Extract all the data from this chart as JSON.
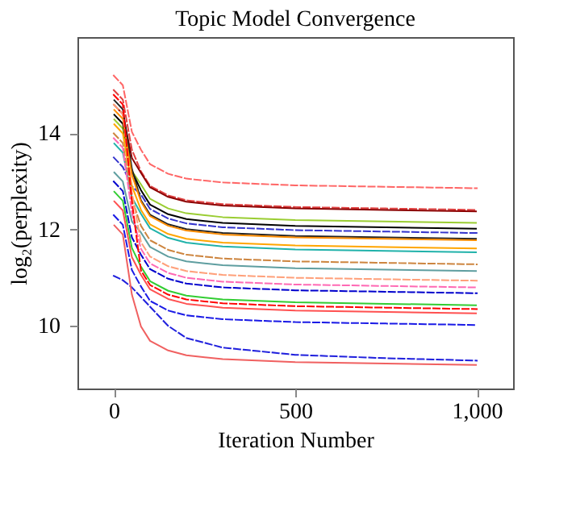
{
  "chart_data": {
    "type": "line",
    "title": "Topic Model Convergence",
    "xlabel": "Iteration Number",
    "ylabel": "log₂(perplexity)",
    "x": [
      0,
      25,
      50,
      75,
      100,
      150,
      200,
      300,
      500,
      750,
      1000
    ],
    "xlim": [
      -100,
      1100
    ],
    "xticks": [
      0,
      500,
      {
        "value": 1000,
        "label": "1,000"
      }
    ],
    "ylim": [
      8.7,
      16
    ],
    "yticks": [
      10,
      12,
      14
    ],
    "grid": false,
    "marker": "none",
    "series": [
      {
        "color": "#ff6666",
        "line_style": "dashed",
        "values": [
          15.2,
          15.0,
          14.03,
          13.66,
          13.36,
          13.16,
          13.06,
          12.98,
          12.92,
          12.89,
          12.86
        ]
      },
      {
        "color": "#e04040",
        "line_style": "dashed",
        "values": [
          14.9,
          14.7,
          13.66,
          13.21,
          12.91,
          12.71,
          12.61,
          12.53,
          12.47,
          12.44,
          12.41
        ]
      },
      {
        "color": "#8b0000",
        "line_style": "solid",
        "values": [
          14.6,
          14.4,
          13.49,
          13.18,
          12.88,
          12.68,
          12.58,
          12.5,
          12.44,
          12.41,
          12.38
        ]
      },
      {
        "color": "#9acd32",
        "line_style": "solid",
        "values": [
          14.3,
          14.1,
          13.22,
          12.94,
          12.64,
          12.44,
          12.34,
          12.26,
          12.2,
          12.17,
          12.14
        ]
      },
      {
        "color": "#000000",
        "line_style": "solid",
        "values": [
          14.4,
          14.2,
          13.21,
          12.82,
          12.52,
          12.32,
          12.22,
          12.14,
          12.08,
          12.05,
          12.02
        ]
      },
      {
        "color": "#3333cc",
        "line_style": "dashed",
        "values": [
          13.5,
          13.3,
          12.9,
          12.73,
          12.43,
          12.23,
          12.13,
          12.05,
          11.99,
          11.96,
          11.93
        ]
      },
      {
        "color": "#222222",
        "line_style": "solid",
        "values": [
          14.7,
          14.5,
          13.26,
          12.61,
          12.31,
          12.11,
          12.01,
          11.93,
          11.87,
          11.84,
          11.81
        ]
      },
      {
        "color": "#ff8c00",
        "line_style": "solid",
        "values": [
          14.5,
          14.3,
          13.14,
          12.58,
          12.28,
          12.08,
          11.98,
          11.9,
          11.84,
          11.81,
          11.78
        ]
      },
      {
        "color": "#ffa500",
        "line_style": "solid",
        "values": [
          14.2,
          14.0,
          12.91,
          12.41,
          12.11,
          11.91,
          11.81,
          11.73,
          11.67,
          11.64,
          11.61
        ]
      },
      {
        "color": "#20b2aa",
        "line_style": "solid",
        "values": [
          13.8,
          13.6,
          12.67,
          12.33,
          12.03,
          11.83,
          11.73,
          11.65,
          11.59,
          11.56,
          11.53
        ]
      },
      {
        "color": "#cd853f",
        "line_style": "dashed",
        "values": [
          14.0,
          13.8,
          12.64,
          12.08,
          11.78,
          11.58,
          11.48,
          11.4,
          11.34,
          11.31,
          11.28
        ]
      },
      {
        "color": "#5f9ea0",
        "line_style": "solid",
        "values": [
          13.2,
          13.0,
          12.17,
          11.94,
          11.64,
          11.44,
          11.34,
          11.26,
          11.2,
          11.17,
          11.14
        ]
      },
      {
        "color": "#ffa07a",
        "line_style": "dashed",
        "values": [
          14.6,
          14.4,
          12.77,
          11.74,
          11.44,
          11.24,
          11.14,
          11.06,
          11.0,
          10.97,
          10.94
        ]
      },
      {
        "color": "#ff69b4",
        "line_style": "dashed",
        "values": [
          13.9,
          13.7,
          12.35,
          11.6,
          11.3,
          11.1,
          11.0,
          10.92,
          10.86,
          10.83,
          10.8
        ]
      },
      {
        "color": "#0000cd",
        "line_style": "dashed",
        "values": [
          13.0,
          12.8,
          11.84,
          11.48,
          11.18,
          10.98,
          10.88,
          10.8,
          10.74,
          10.71,
          10.68
        ]
      },
      {
        "color": "#32cd32",
        "line_style": "solid",
        "values": [
          12.8,
          12.6,
          11.62,
          11.23,
          10.93,
          10.73,
          10.63,
          10.55,
          10.49,
          10.46,
          10.43
        ]
      },
      {
        "color": "#ff0000",
        "line_style": "dashed",
        "values": [
          14.8,
          14.6,
          12.58,
          11.15,
          10.85,
          10.65,
          10.55,
          10.47,
          10.41,
          10.38,
          10.35
        ]
      },
      {
        "color": "#ff5050",
        "line_style": "solid",
        "values": [
          12.6,
          12.4,
          11.43,
          11.06,
          10.76,
          10.56,
          10.46,
          10.38,
          10.32,
          10.29,
          10.26
        ]
      },
      {
        "color": "#1a1ae6",
        "line_style": "dashed",
        "values": [
          12.3,
          12.1,
          11.16,
          10.82,
          10.52,
          10.32,
          10.22,
          10.14,
          10.08,
          10.05,
          10.02
        ]
      },
      {
        "color": "#2020dd",
        "line_style": "dashed",
        "values": [
          11.04,
          10.95,
          10.8,
          10.6,
          10.4,
          10.0,
          9.75,
          9.55,
          9.4,
          9.33,
          9.28
        ]
      },
      {
        "color": "#f06060",
        "line_style": "solid",
        "values": [
          12.1,
          11.9,
          10.65,
          9.99,
          9.69,
          9.49,
          9.39,
          9.31,
          9.25,
          9.22,
          9.19
        ]
      }
    ]
  }
}
